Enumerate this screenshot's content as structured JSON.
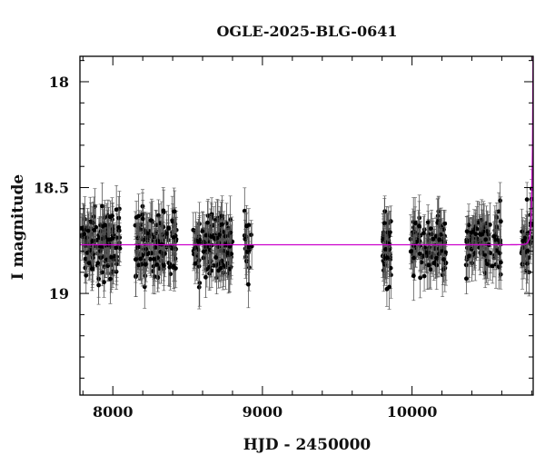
{
  "chart_data": {
    "type": "scatter",
    "title": "OGLE-2025-BLG-0641",
    "xlabel": "HJD - 2450000",
    "ylabel": "I magnitude",
    "xlim": [
      7780,
      10810
    ],
    "ylim": [
      19.48,
      17.88
    ],
    "y_inverted": true,
    "grid": false,
    "legend": "none",
    "x_tick_labels": [
      "8000",
      "9000",
      "10000"
    ],
    "x_ticks": [
      8000,
      9000,
      10000
    ],
    "y_tick_labels": [
      "18",
      "18.5",
      "19"
    ],
    "y_ticks": [
      18.0,
      18.5,
      19.0
    ],
    "colors": {
      "points": "#000000",
      "errorbars": "#555555",
      "model": "#cc00cc",
      "axes": "#000000"
    },
    "series": [
      {
        "kind": "points",
        "baseline_mag": 18.77,
        "scatter_sigma": 0.075,
        "typical_error": 0.09,
        "seasons": [
          {
            "x_start": 7790,
            "x_end": 8050,
            "n_points": 150
          },
          {
            "x_start": 8150,
            "x_end": 8430,
            "n_points": 150
          },
          {
            "x_start": 8530,
            "x_end": 8800,
            "n_points": 150
          },
          {
            "x_start": 8880,
            "x_end": 8930,
            "n_points": 20
          },
          {
            "x_start": 9800,
            "x_end": 9860,
            "n_points": 55
          },
          {
            "x_start": 9990,
            "x_end": 10230,
            "n_points": 110
          },
          {
            "x_start": 10360,
            "x_end": 10600,
            "n_points": 110
          },
          {
            "x_start": 10730,
            "x_end": 10805,
            "n_points": 45
          }
        ]
      },
      {
        "kind": "model",
        "baseline_mag": 18.77,
        "peak_time": 10815,
        "tE": 12,
        "u0": 0.05
      }
    ]
  }
}
